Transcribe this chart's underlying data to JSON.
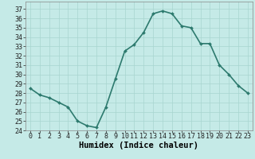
{
  "x": [
    0,
    1,
    2,
    3,
    4,
    5,
    6,
    7,
    8,
    9,
    10,
    11,
    12,
    13,
    14,
    15,
    16,
    17,
    18,
    19,
    20,
    21,
    22,
    23
  ],
  "y": [
    28.5,
    27.8,
    27.5,
    27.0,
    26.5,
    25.0,
    24.5,
    24.3,
    26.5,
    29.5,
    32.5,
    33.2,
    34.5,
    36.5,
    36.8,
    36.5,
    35.2,
    35.0,
    33.3,
    33.3,
    31.0,
    30.0,
    28.8,
    28.0
  ],
  "line_color": "#2d7a6e",
  "marker": "D",
  "marker_size": 2.0,
  "line_width": 1.2,
  "bg_color": "#c5eae7",
  "grid_color": "#a8d5d0",
  "xlabel": "Humidex (Indice chaleur)",
  "xlim": [
    -0.5,
    23.5
  ],
  "ylim": [
    24,
    37.8
  ],
  "yticks": [
    24,
    25,
    26,
    27,
    28,
    29,
    30,
    31,
    32,
    33,
    34,
    35,
    36,
    37
  ],
  "xticks": [
    0,
    1,
    2,
    3,
    4,
    5,
    6,
    7,
    8,
    9,
    10,
    11,
    12,
    13,
    14,
    15,
    16,
    17,
    18,
    19,
    20,
    21,
    22,
    23
  ],
  "tick_fontsize": 6.0,
  "xlabel_fontsize": 7.5
}
